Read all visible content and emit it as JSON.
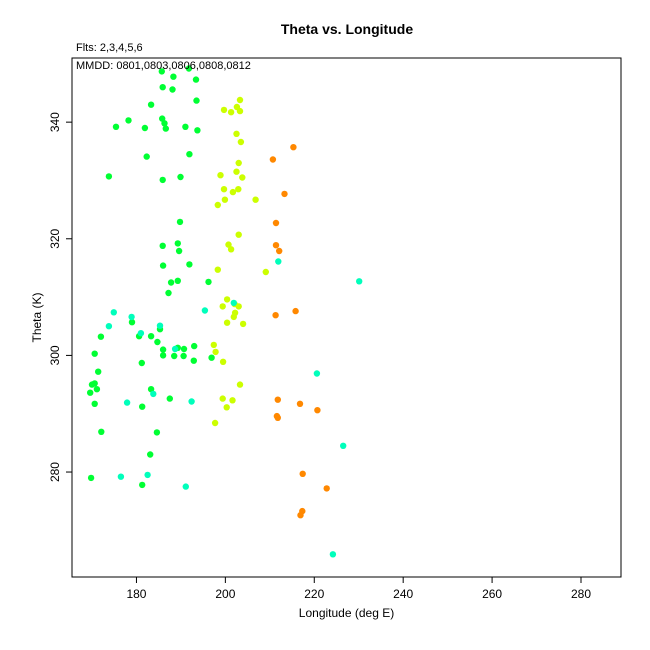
{
  "chart_data": {
    "type": "scatter",
    "title": "Theta vs. Longitude",
    "subtitle": "Flts: 2,3,4,5,6",
    "annotation": "MMDD: 0801,0803,0806,0808,0812",
    "xlabel": "Longitude (deg E)",
    "ylabel": "Theta (K)",
    "xlim": [
      165.5,
      289
    ],
    "ylim": [
      262,
      351
    ],
    "xticks": [
      "180",
      "200",
      "220",
      "240",
      "260",
      "280"
    ],
    "yticks": [
      "280",
      "300",
      "320",
      "340"
    ],
    "grid": false,
    "series": [
      {
        "color": "#00ff33",
        "points": [
          [
            181.9,
            339.0
          ],
          [
            183.3,
            343.0
          ],
          [
            185.7,
            348.7
          ],
          [
            188.3,
            347.8
          ],
          [
            191.8,
            349.2
          ],
          [
            193.4,
            347.3
          ],
          [
            185.9,
            346.0
          ],
          [
            188.1,
            345.6
          ],
          [
            193.5,
            343.7
          ],
          [
            175.4,
            339.2
          ],
          [
            178.2,
            340.3
          ],
          [
            185.8,
            340.6
          ],
          [
            186.3,
            339.8
          ],
          [
            186.6,
            338.9
          ],
          [
            191.0,
            339.2
          ],
          [
            193.7,
            338.6
          ],
          [
            182.3,
            334.1
          ],
          [
            191.9,
            334.5
          ],
          [
            173.8,
            330.7
          ],
          [
            185.9,
            330.1
          ],
          [
            189.9,
            330.6
          ],
          [
            189.8,
            322.9
          ],
          [
            185.9,
            318.8
          ],
          [
            189.3,
            319.2
          ],
          [
            189.6,
            317.9
          ],
          [
            186.0,
            315.4
          ],
          [
            191.9,
            315.6
          ],
          [
            189.3,
            312.8
          ],
          [
            187.8,
            312.5
          ],
          [
            187.2,
            310.7
          ],
          [
            196.2,
            312.6
          ],
          [
            189.3,
            301.3
          ],
          [
            190.7,
            301.1
          ],
          [
            193.0,
            301.6
          ],
          [
            186.0,
            301.0
          ],
          [
            186.0,
            300.0
          ],
          [
            188.5,
            299.9
          ],
          [
            190.6,
            299.9
          ],
          [
            192.9,
            299.1
          ],
          [
            196.9,
            299.6
          ],
          [
            180.6,
            303.3
          ],
          [
            183.3,
            303.3
          ],
          [
            184.7,
            302.3
          ],
          [
            181.2,
            298.7
          ],
          [
            179.0,
            305.7
          ],
          [
            185.3,
            304.5
          ],
          [
            170.6,
            300.3
          ],
          [
            172.0,
            303.2
          ],
          [
            171.4,
            297.2
          ],
          [
            170.6,
            295.2
          ],
          [
            170.0,
            295.0
          ],
          [
            169.6,
            293.6
          ],
          [
            171.1,
            294.2
          ],
          [
            183.3,
            294.2
          ],
          [
            187.5,
            292.6
          ],
          [
            170.6,
            291.7
          ],
          [
            181.3,
            291.2
          ],
          [
            172.1,
            286.9
          ],
          [
            184.6,
            286.8
          ],
          [
            183.1,
            283.0
          ],
          [
            169.8,
            279.0
          ],
          [
            181.3,
            277.8
          ]
        ]
      },
      {
        "color": "#ccff00",
        "points": [
          [
            199.7,
            342.1
          ],
          [
            201.3,
            341.7
          ],
          [
            202.6,
            342.6
          ],
          [
            203.3,
            341.9
          ],
          [
            203.3,
            343.8
          ],
          [
            202.5,
            338.0
          ],
          [
            203.5,
            336.6
          ],
          [
            198.9,
            330.9
          ],
          [
            199.7,
            328.5
          ],
          [
            201.7,
            328.0
          ],
          [
            203.0,
            333.0
          ],
          [
            203.8,
            330.5
          ],
          [
            202.5,
            331.5
          ],
          [
            202.9,
            328.5
          ],
          [
            206.8,
            326.7
          ],
          [
            199.9,
            326.7
          ],
          [
            198.3,
            325.8
          ],
          [
            203.0,
            320.7
          ],
          [
            200.7,
            319.0
          ],
          [
            201.3,
            318.2
          ],
          [
            198.3,
            314.7
          ],
          [
            209.1,
            314.3
          ],
          [
            200.4,
            309.6
          ],
          [
            202.1,
            308.8
          ],
          [
            203.0,
            308.4
          ],
          [
            199.4,
            308.4
          ],
          [
            202.2,
            307.3
          ],
          [
            201.9,
            306.6
          ],
          [
            200.4,
            305.6
          ],
          [
            204.0,
            305.4
          ],
          [
            197.4,
            301.8
          ],
          [
            197.8,
            300.6
          ],
          [
            199.5,
            298.9
          ],
          [
            203.3,
            295.0
          ],
          [
            199.4,
            292.6
          ],
          [
            201.6,
            292.3
          ],
          [
            200.3,
            291.1
          ],
          [
            197.7,
            288.4
          ]
        ]
      },
      {
        "color": "#ff8800",
        "points": [
          [
            215.3,
            335.7
          ],
          [
            210.7,
            333.6
          ],
          [
            213.3,
            327.7
          ],
          [
            211.4,
            322.7
          ],
          [
            211.4,
            318.9
          ],
          [
            212.1,
            317.9
          ],
          [
            215.8,
            307.6
          ],
          [
            211.3,
            306.9
          ],
          [
            211.8,
            292.4
          ],
          [
            216.8,
            291.7
          ],
          [
            220.7,
            290.6
          ],
          [
            211.6,
            289.6
          ],
          [
            211.8,
            289.3
          ],
          [
            217.4,
            279.7
          ],
          [
            222.8,
            277.2
          ],
          [
            217.3,
            273.3
          ],
          [
            216.9,
            272.6
          ]
        ]
      },
      {
        "color": "#00ffbb",
        "points": [
          [
            230.1,
            312.7
          ],
          [
            211.9,
            316.1
          ],
          [
            201.9,
            309.0
          ],
          [
            195.4,
            307.7
          ],
          [
            174.9,
            307.4
          ],
          [
            178.9,
            306.6
          ],
          [
            173.8,
            305.0
          ],
          [
            185.3,
            305.1
          ],
          [
            181.0,
            303.8
          ],
          [
            188.7,
            301.1
          ],
          [
            220.6,
            296.9
          ],
          [
            183.8,
            293.4
          ],
          [
            177.9,
            291.9
          ],
          [
            192.4,
            292.1
          ],
          [
            226.5,
            284.5
          ],
          [
            176.5,
            279.2
          ],
          [
            182.5,
            279.5
          ],
          [
            191.1,
            277.5
          ],
          [
            224.2,
            265.9
          ]
        ]
      }
    ]
  }
}
